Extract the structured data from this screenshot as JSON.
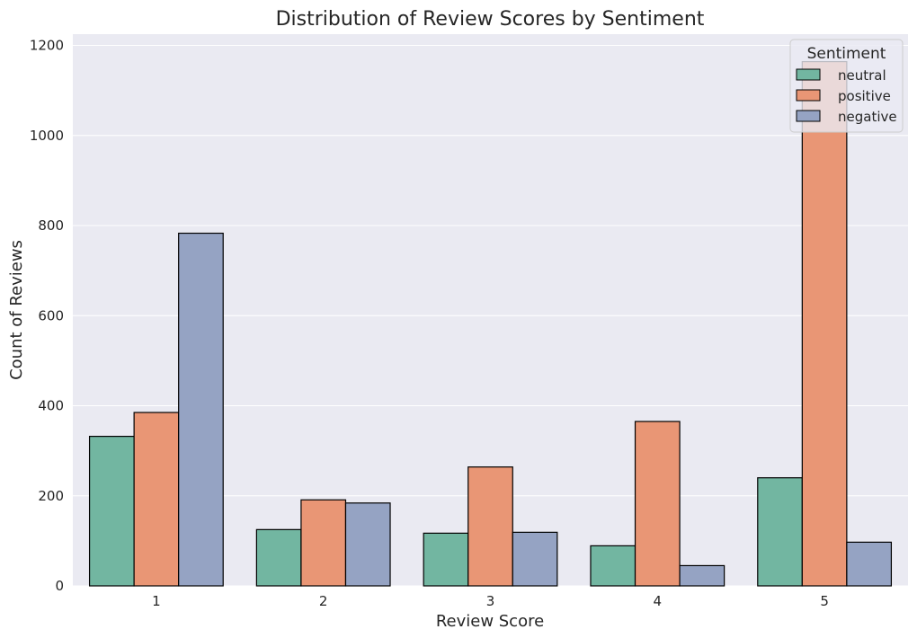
{
  "chart_data": {
    "type": "bar",
    "title": "Distribution of Review Scores by Sentiment",
    "xlabel": "Review Score",
    "ylabel": "Count of Reviews",
    "categories": [
      "1",
      "2",
      "3",
      "4",
      "5"
    ],
    "series": [
      {
        "name": "neutral",
        "color": "#72b6a1",
        "values": [
          332,
          125,
          117,
          89,
          240
        ]
      },
      {
        "name": "positive",
        "color": "#e99675",
        "values": [
          385,
          191,
          264,
          365,
          1164
        ]
      },
      {
        "name": "negative",
        "color": "#95a3c3",
        "values": [
          783,
          184,
          119,
          45,
          97
        ]
      }
    ],
    "ylim": [
      0,
      1225
    ],
    "yticks": [
      0,
      200,
      400,
      600,
      800,
      1000,
      1200
    ],
    "grid": true,
    "legend": {
      "title": "Sentiment",
      "position": "top-right"
    },
    "style": {
      "plot_background": "#eaeaf2",
      "grid_color": "#ffffff",
      "bar_edge": "#000000"
    }
  }
}
